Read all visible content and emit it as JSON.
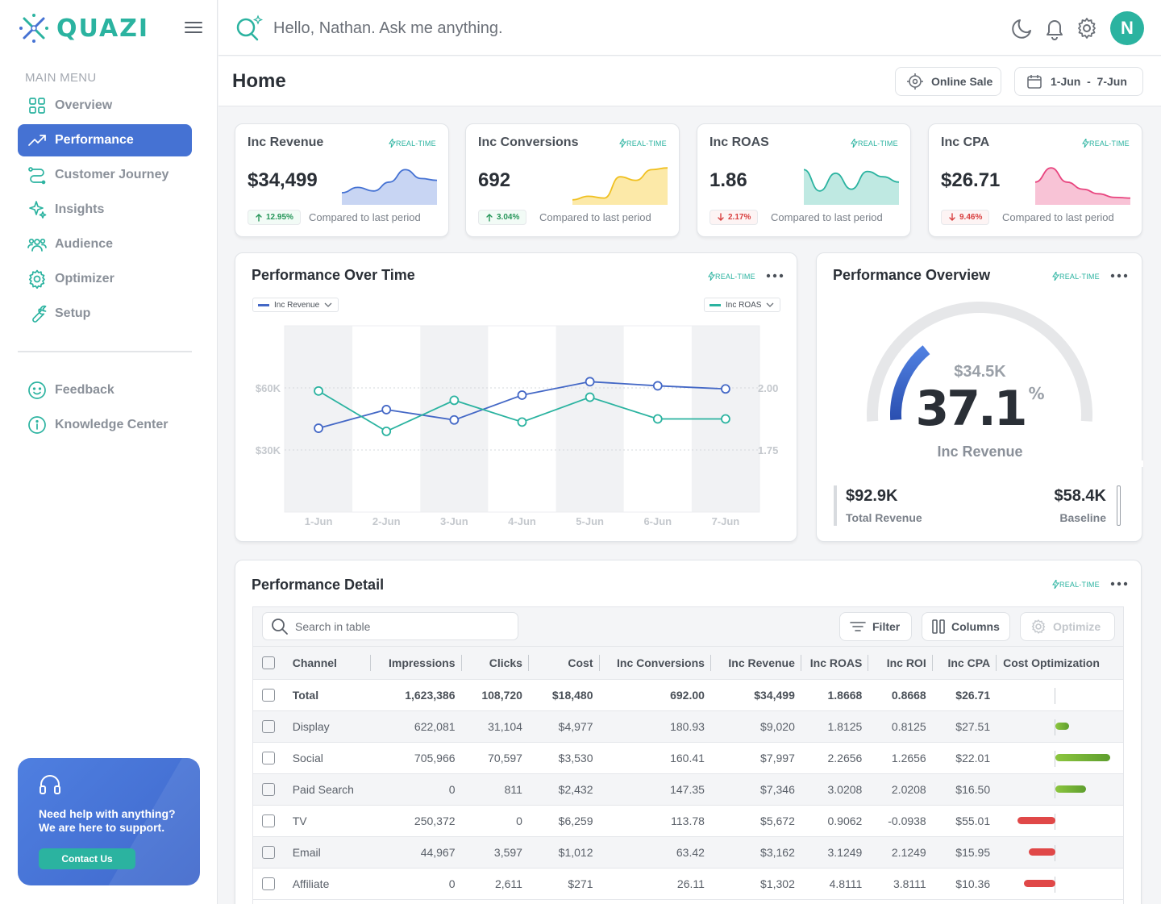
{
  "app": {
    "brand": "QUAZI"
  },
  "sidebar": {
    "menu_heading": "MAIN MENU",
    "items": [
      {
        "label": "Overview",
        "icon": "grid-icon",
        "active": false
      },
      {
        "label": "Performance",
        "icon": "trending-up-icon",
        "active": true
      },
      {
        "label": "Customer Journey",
        "icon": "route-icon",
        "active": false
      },
      {
        "label": "Insights",
        "icon": "sparkle-icon",
        "active": false
      },
      {
        "label": "Audience",
        "icon": "users-icon",
        "active": false
      },
      {
        "label": "Optimizer",
        "icon": "gear-icon",
        "active": false
      },
      {
        "label": "Setup",
        "icon": "wrench-icon",
        "active": false
      }
    ],
    "secondary": [
      {
        "label": "Feedback",
        "icon": "smile-icon"
      },
      {
        "label": "Knowledge Center",
        "icon": "info-icon"
      }
    ],
    "support": {
      "text": "Need help with anything? We are here to support.",
      "button": "Contact Us"
    }
  },
  "topbar": {
    "ask_placeholder": "Hello, Nathan. Ask me anything.",
    "avatar_initial": "N"
  },
  "header": {
    "title": "Home",
    "channel_button": "Online Sale",
    "date_range": "1-Jun  -  7-Jun"
  },
  "realtime_label": "REAL-TIME",
  "kpis": [
    {
      "title": "Inc Revenue",
      "value": "$34,499",
      "change": "12.95%",
      "direction": "up",
      "compare": "Compared to last period",
      "color": "#4572d3",
      "fill": "#c8d5f3",
      "trend": [
        0.25,
        0.4,
        0.3,
        0.55,
        0.9,
        0.65,
        0.6
      ]
    },
    {
      "title": "Inc Conversions",
      "value": "692",
      "change": "3.04%",
      "direction": "up",
      "compare": "Compared to last period",
      "color": "#f0c020",
      "fill": "#fce9a8",
      "trend": [
        0.05,
        0.15,
        0.1,
        0.7,
        0.6,
        0.9,
        0.95
      ]
    },
    {
      "title": "Inc ROAS",
      "value": "1.86",
      "change": "2.17%",
      "direction": "down",
      "compare": "Compared to last period",
      "color": "#2bb3a0",
      "fill": "#bfe9e2",
      "trend": [
        0.9,
        0.3,
        0.8,
        0.35,
        0.85,
        0.7,
        0.55
      ]
    },
    {
      "title": "Inc CPA",
      "value": "$26.71",
      "change": "9.46%",
      "direction": "down",
      "compare": "Compared to last period",
      "color": "#e8457f",
      "fill": "#f8c3d6",
      "trend": [
        0.55,
        0.95,
        0.55,
        0.35,
        0.22,
        0.12,
        0.1
      ]
    }
  ],
  "performance_over_time": {
    "title": "Performance Over Time",
    "left_metric": "Inc Revenue",
    "right_metric": "Inc ROAS",
    "colors": {
      "left": "#4468c6",
      "right": "#2bb3a0"
    }
  },
  "chart_data": {
    "type": "line",
    "categories": [
      "1-Jun",
      "2-Jun",
      "3-Jun",
      "4-Jun",
      "5-Jun",
      "6-Jun",
      "7-Jun"
    ],
    "series": [
      {
        "name": "Inc Revenue",
        "axis": "left",
        "values": [
          40500,
          49500,
          44500,
          56500,
          63000,
          61000,
          59500
        ]
      },
      {
        "name": "Inc ROAS",
        "axis": "right",
        "values": [
          1.89,
          1.76,
          1.86,
          1.79,
          1.87,
          1.8,
          1.8
        ]
      }
    ],
    "yticks_left": [
      "$60K",
      "$30K"
    ],
    "yticks_right": [
      "2.00",
      "1.75"
    ],
    "ylim_left": [
      0,
      90000
    ],
    "ylim_right": [
      1.5,
      2.1
    ]
  },
  "overview": {
    "title": "Performance Overview",
    "gauge_amount": "$34.5K",
    "gauge_percent": "37.1",
    "percent_sign": "%",
    "gauge_label": "Inc Revenue",
    "gauge_fraction": 0.371,
    "total_value": "$92.9K",
    "total_label": "Total Revenue",
    "baseline_value": "$58.4K",
    "baseline_label": "Baseline"
  },
  "detail": {
    "title": "Performance Detail",
    "search_placeholder": "Search in table",
    "filter": "Filter",
    "columns": "Columns",
    "optimize": "Optimize",
    "headers": [
      "Channel",
      "Impressions",
      "Clicks",
      "Cost",
      "Inc Conversions",
      "Inc Revenue",
      "Inc ROAS",
      "Inc ROI",
      "Inc CPA",
      "Cost Optimization"
    ],
    "rows": [
      {
        "cells": [
          "Total",
          "1,623,386",
          "108,720",
          "$18,480",
          "692.00",
          "$34,499",
          "1.8668",
          "0.8668",
          "$26.71"
        ],
        "opt": 0,
        "total": true
      },
      {
        "cells": [
          "Display",
          "622,081",
          "31,104",
          "$4,977",
          "180.93",
          "$9,020",
          "1.8125",
          "0.8125",
          "$27.51"
        ],
        "opt": 0.25
      },
      {
        "cells": [
          "Social",
          "705,966",
          "70,597",
          "$3,530",
          "160.41",
          "$7,997",
          "2.2656",
          "1.2656",
          "$22.01"
        ],
        "opt": 1.0
      },
      {
        "cells": [
          "Paid Search",
          "0",
          "811",
          "$2,432",
          "147.35",
          "$7,346",
          "3.0208",
          "2.0208",
          "$16.50"
        ],
        "opt": 0.55
      },
      {
        "cells": [
          "TV",
          "250,372",
          "0",
          "$6,259",
          "113.78",
          "$5,672",
          "0.9062",
          "-0.0938",
          "$55.01"
        ],
        "opt": -0.7
      },
      {
        "cells": [
          "Email",
          "44,967",
          "3,597",
          "$1,012",
          "63.42",
          "$3,162",
          "3.1249",
          "2.1249",
          "$15.95"
        ],
        "opt": -0.48
      },
      {
        "cells": [
          "Affiliate",
          "0",
          "2,611",
          "$271",
          "26.11",
          "$1,302",
          "4.8111",
          "3.8111",
          "$10.36"
        ],
        "opt": -0.58
      }
    ]
  }
}
